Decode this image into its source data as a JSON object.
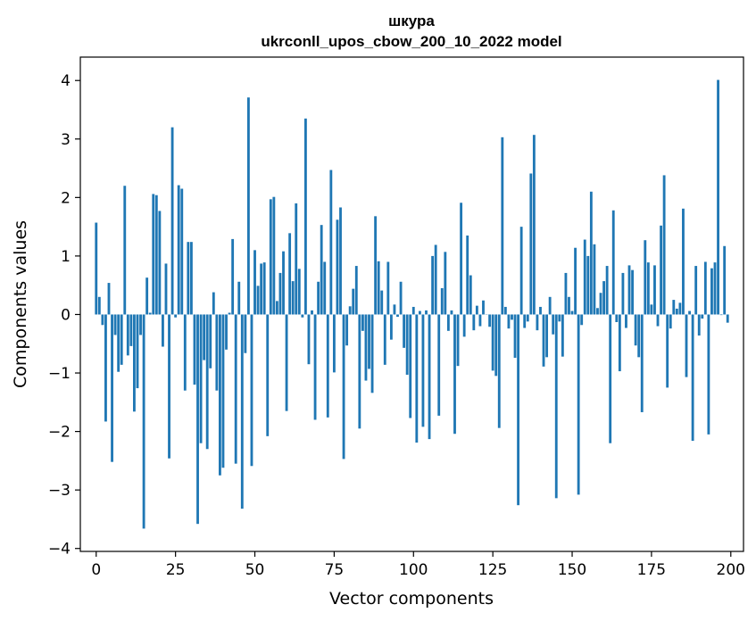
{
  "chart_data": {
    "type": "bar",
    "title": "шкура",
    "subtitle": "ukrconll_upos_cbow_200_10_2022 model",
    "xlabel": "Vector components",
    "ylabel": "Components values",
    "xlim": [
      -5,
      204
    ],
    "ylim": [
      -4.05,
      4.4
    ],
    "xticks": [
      0,
      25,
      50,
      75,
      100,
      125,
      150,
      175,
      200
    ],
    "yticks": [
      -4,
      -3,
      -2,
      -1,
      0,
      1,
      2,
      3,
      4
    ],
    "grid": false,
    "bar_color": "#1f77b4",
    "x": [
      0,
      1,
      2,
      3,
      4,
      5,
      6,
      7,
      8,
      9,
      10,
      11,
      12,
      13,
      14,
      15,
      16,
      17,
      18,
      19,
      20,
      21,
      22,
      23,
      24,
      25,
      26,
      27,
      28,
      29,
      30,
      31,
      32,
      33,
      34,
      35,
      36,
      37,
      38,
      39,
      40,
      41,
      42,
      43,
      44,
      45,
      46,
      47,
      48,
      49,
      50,
      51,
      52,
      53,
      54,
      55,
      56,
      57,
      58,
      59,
      60,
      61,
      62,
      63,
      64,
      65,
      66,
      67,
      68,
      69,
      70,
      71,
      72,
      73,
      74,
      75,
      76,
      77,
      78,
      79,
      80,
      81,
      82,
      83,
      84,
      85,
      86,
      87,
      88,
      89,
      90,
      91,
      92,
      93,
      94,
      95,
      96,
      97,
      98,
      99,
      100,
      101,
      102,
      103,
      104,
      105,
      106,
      107,
      108,
      109,
      110,
      111,
      112,
      113,
      114,
      115,
      116,
      117,
      118,
      119,
      120,
      121,
      122,
      123,
      124,
      125,
      126,
      127,
      128,
      129,
      130,
      131,
      132,
      133,
      134,
      135,
      136,
      137,
      138,
      139,
      140,
      141,
      142,
      143,
      144,
      145,
      146,
      147,
      148,
      149,
      150,
      151,
      152,
      153,
      154,
      155,
      156,
      157,
      158,
      159,
      160,
      161,
      162,
      163,
      164,
      165,
      166,
      167,
      168,
      169,
      170,
      171,
      172,
      173,
      174,
      175,
      176,
      177,
      178,
      179,
      180,
      181,
      182,
      183,
      184,
      185,
      186,
      187,
      188,
      189,
      190,
      191,
      192,
      193,
      194,
      195,
      196,
      197,
      198,
      199
    ],
    "values": [
      1.57,
      0.3,
      -0.18,
      -1.83,
      0.54,
      -2.52,
      -0.35,
      -0.98,
      -0.86,
      2.2,
      -0.7,
      -0.54,
      -1.66,
      -1.26,
      -0.35,
      -3.66,
      0.63,
      0.03,
      2.06,
      2.04,
      1.77,
      -0.55,
      0.87,
      -2.46,
      3.2,
      -0.05,
      2.21,
      2.15,
      -1.3,
      1.24,
      1.24,
      -1.2,
      -3.58,
      -2.2,
      -0.78,
      -2.3,
      -0.92,
      0.38,
      -1.3,
      -2.75,
      -2.62,
      -0.6,
      0.03,
      1.29,
      -2.55,
      0.56,
      -3.32,
      -0.66,
      3.71,
      -2.59,
      1.1,
      0.49,
      0.87,
      0.89,
      -2.08,
      1.97,
      2.01,
      0.23,
      0.71,
      1.08,
      -1.65,
      1.39,
      0.57,
      1.9,
      0.78,
      -0.05,
      3.35,
      -0.85,
      0.07,
      -1.8,
      0.56,
      1.53,
      0.9,
      -1.76,
      2.47,
      -0.99,
      1.62,
      1.83,
      -2.47,
      -0.53,
      0.14,
      0.44,
      0.83,
      -1.95,
      -0.28,
      -1.13,
      -0.93,
      -1.34,
      1.68,
      0.91,
      0.41,
      -0.86,
      0.9,
      -0.43,
      0.17,
      -0.04,
      0.56,
      -0.57,
      -1.03,
      -1.77,
      0.13,
      -2.19,
      0.06,
      -1.92,
      0.07,
      -2.13,
      1.0,
      1.19,
      -1.73,
      0.45,
      1.07,
      -0.28,
      0.07,
      -2.04,
      -0.88,
      1.91,
      -0.38,
      1.35,
      0.67,
      -0.27,
      0.15,
      -0.2,
      0.24,
      0.0,
      -0.21,
      -0.96,
      -1.05,
      -1.94,
      3.03,
      0.13,
      -0.24,
      -0.09,
      -0.74,
      -3.26,
      1.5,
      -0.23,
      -0.12,
      2.41,
      3.07,
      -0.27,
      0.13,
      -0.89,
      -0.73,
      0.3,
      -0.34,
      -3.14,
      -0.12,
      -0.72,
      0.71,
      0.3,
      0.06,
      1.14,
      -3.08,
      -0.18,
      1.28,
      1.0,
      2.1,
      1.2,
      0.11,
      0.37,
      0.57,
      0.83,
      -2.2,
      1.78,
      -0.13,
      -0.97,
      0.71,
      -0.23,
      0.84,
      0.76,
      -0.53,
      -0.73,
      -1.67,
      1.27,
      0.89,
      0.17,
      0.84,
      -0.2,
      1.52,
      2.38,
      -1.25,
      -0.24,
      0.25,
      0.1,
      0.2,
      1.81,
      -1.07,
      0.06,
      -2.16,
      0.83,
      -0.36,
      -0.07,
      0.9,
      -2.05,
      0.79,
      0.89,
      4.01,
      -0.01,
      1.17,
      -0.14
    ]
  }
}
